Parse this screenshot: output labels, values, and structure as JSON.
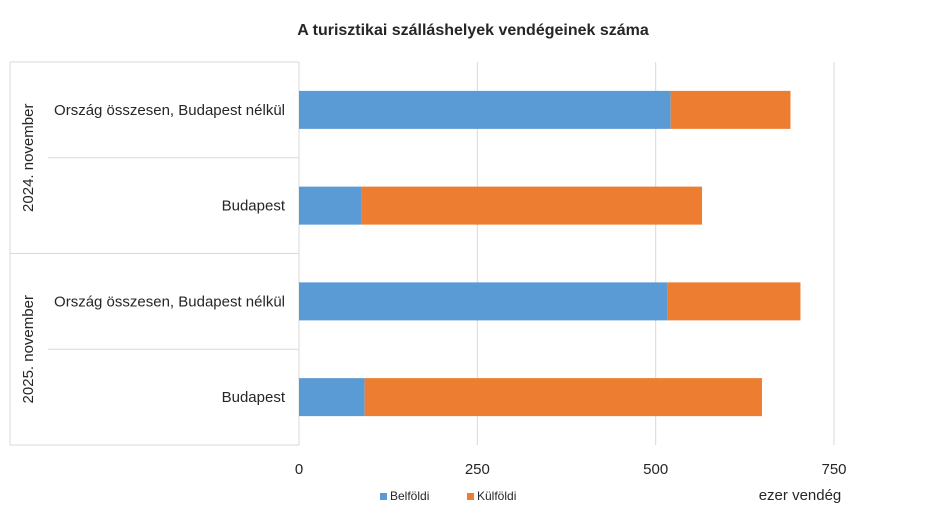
{
  "chart_data": {
    "type": "bar",
    "orientation": "horizontal",
    "stacked": true,
    "title": "A turisztikai szálláshelyek vendégeinek száma",
    "xlabel": "ezer vendég",
    "xlim": [
      0,
      750
    ],
    "xticks": [
      0,
      250,
      500,
      750
    ],
    "grid": true,
    "legend_position": "bottom",
    "groups": [
      {
        "label": "2024. november",
        "categories": [
          "Ország összesen, Budapest nélkül",
          "Budapest"
        ]
      },
      {
        "label": "2025. november",
        "categories": [
          "Ország összesen, Budapest nélkül",
          "Budapest"
        ]
      }
    ],
    "series": [
      {
        "name": "Belföldi",
        "color": "#5B9BD5",
        "values": [
          521,
          87,
          517,
          92
        ]
      },
      {
        "name": "Külföldi",
        "color": "#ED7D31",
        "values": [
          168,
          478,
          186,
          557
        ]
      }
    ]
  }
}
